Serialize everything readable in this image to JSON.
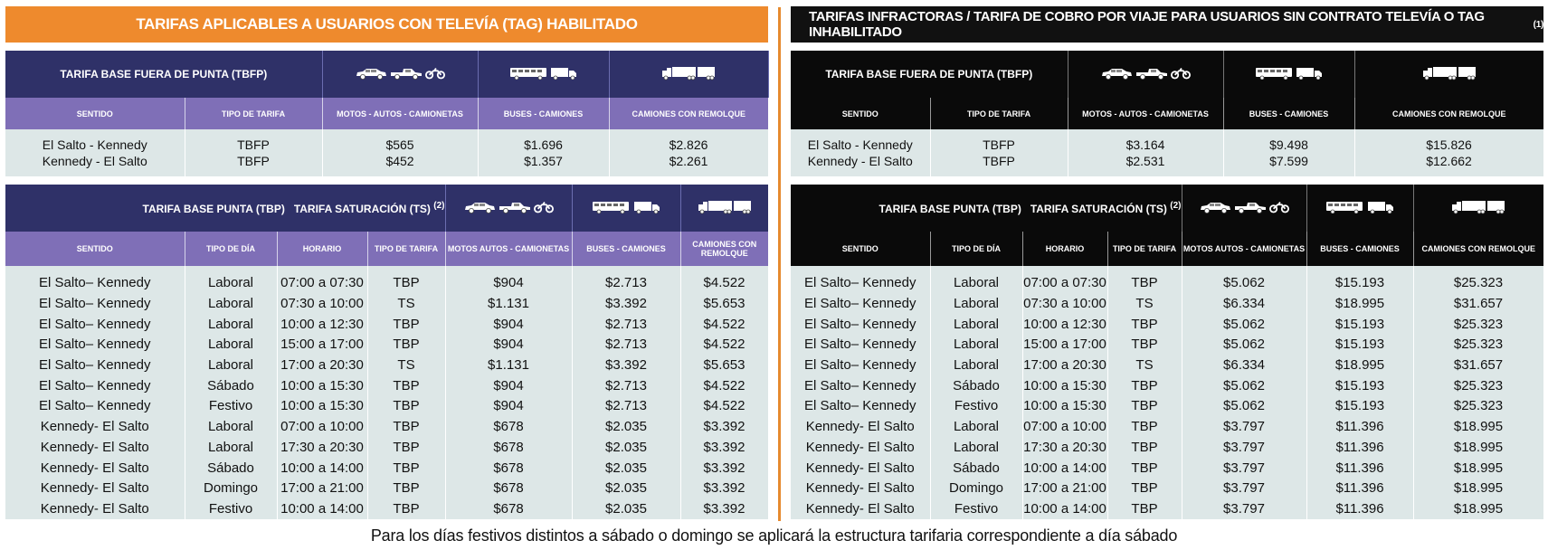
{
  "left": {
    "banner": "TARIFAS APLICABLES A USUARIOS CON TELEVÍA (TAG) HABILITADO",
    "tbfp": {
      "title": "TARIFA BASE FUERA DE PUNTA (TBFP)",
      "headers": [
        "SENTIDO",
        "TIPO DE TARIFA",
        "MOTOS - AUTOS - CAMIONETAS",
        "BUSES - CAMIONES",
        "CAMIONES CON REMOLQUE"
      ],
      "rows": [
        {
          "sentido": "El Salto - Kennedy",
          "tipo": "TBFP",
          "motos": "$565",
          "buses": "$1.696",
          "remolque": "$2.826"
        },
        {
          "sentido": "Kennedy - El Salto",
          "tipo": "TBFP",
          "motos": "$452",
          "buses": "$1.357",
          "remolque": "$2.261"
        }
      ]
    },
    "tbp": {
      "title": "TARIFA BASE PUNTA (TBP)   TARIFA SATURACIÓN (TS)",
      "note": "(2)",
      "headers": [
        "SENTIDO",
        "TIPO DE DÍA",
        "HORARIO",
        "TIPO DE TARIFA",
        "MOTOS AUTOS - CAMIONETAS",
        "BUSES - CAMIONES",
        "CAMIONES CON REMOLQUE"
      ],
      "rows": [
        [
          "El Salto– Kennedy",
          "Laboral",
          "07:00 a 07:30",
          "TBP",
          "$904",
          "$2.713",
          "$4.522"
        ],
        [
          "El Salto– Kennedy",
          "Laboral",
          "07:30 a 10:00",
          "TS",
          "$1.131",
          "$3.392",
          "$5.653"
        ],
        [
          "El Salto– Kennedy",
          "Laboral",
          "10:00 a 12:30",
          "TBP",
          "$904",
          "$2.713",
          "$4.522"
        ],
        [
          "El Salto– Kennedy",
          "Laboral",
          "15:00 a 17:00",
          "TBP",
          "$904",
          "$2.713",
          "$4.522"
        ],
        [
          "El Salto– Kennedy",
          "Laboral",
          "17:00 a 20:30",
          "TS",
          "$1.131",
          "$3.392",
          "$5.653"
        ],
        [
          "El Salto– Kennedy",
          "Sábado",
          "10:00 a 15:30",
          "TBP",
          "$904",
          "$2.713",
          "$4.522"
        ],
        [
          "El Salto– Kennedy",
          "Festivo",
          "10:00 a 15:30",
          "TBP",
          "$904",
          "$2.713",
          "$4.522"
        ],
        [
          "Kennedy- El Salto",
          "Laboral",
          "07:00 a 10:00",
          "TBP",
          "$678",
          "$2.035",
          "$3.392"
        ],
        [
          "Kennedy- El Salto",
          "Laboral",
          "17:30 a 20:30",
          "TBP",
          "$678",
          "$2.035",
          "$3.392"
        ],
        [
          "Kennedy- El Salto",
          "Sábado",
          "10:00 a 14:00",
          "TBP",
          "$678",
          "$2.035",
          "$3.392"
        ],
        [
          "Kennedy- El Salto",
          "Domingo",
          "17:00 a 21:00",
          "TBP",
          "$678",
          "$2.035",
          "$3.392"
        ],
        [
          "Kennedy- El Salto",
          "Festivo",
          "10:00 a 14:00",
          "TBP",
          "$678",
          "$2.035",
          "$3.392"
        ]
      ]
    }
  },
  "right": {
    "banner": "TARIFAS INFRACTORAS / TARIFA DE COBRO POR VIAJE PARA USUARIOS SIN CONTRATO TELEVÍA O TAG INHABILITADO",
    "banner_note": "(1)",
    "tbfp": {
      "title": "TARIFA BASE FUERA DE PUNTA (TBFP)",
      "headers": [
        "SENTIDO",
        "TIPO DE TARIFA",
        "MOTOS - AUTOS - CAMIONETAS",
        "BUSES - CAMIONES",
        "CAMIONES CON REMOLQUE"
      ],
      "rows": [
        {
          "sentido": "El Salto - Kennedy",
          "tipo": "TBFP",
          "motos": "$3.164",
          "buses": "$9.498",
          "remolque": "$15.826"
        },
        {
          "sentido": "Kennedy - El Salto",
          "tipo": "TBFP",
          "motos": "$2.531",
          "buses": "$7.599",
          "remolque": "$12.662"
        }
      ]
    },
    "tbp": {
      "title": "TARIFA BASE PUNTA (TBP)   TARIFA SATURACIÓN (TS)",
      "note": "(2)",
      "headers": [
        "SENTIDO",
        "TIPO DE DÍA",
        "HORARIO",
        "TIPO DE TARIFA",
        "MOTOS AUTOS - CAMIONETAS",
        "BUSES - CAMIONES",
        "CAMIONES CON REMOLQUE"
      ],
      "rows": [
        [
          "El Salto– Kennedy",
          "Laboral",
          "07:00 a 07:30",
          "TBP",
          "$5.062",
          "$15.193",
          "$25.323"
        ],
        [
          "El Salto– Kennedy",
          "Laboral",
          "07:30 a 10:00",
          "TS",
          "$6.334",
          "$18.995",
          "$31.657"
        ],
        [
          "El Salto– Kennedy",
          "Laboral",
          "10:00 a 12:30",
          "TBP",
          "$5.062",
          "$15.193",
          "$25.323"
        ],
        [
          "El Salto– Kennedy",
          "Laboral",
          "15:00 a 17:00",
          "TBP",
          "$5.062",
          "$15.193",
          "$25.323"
        ],
        [
          "El Salto– Kennedy",
          "Laboral",
          "17:00 a 20:30",
          "TS",
          "$6.334",
          "$18.995",
          "$31.657"
        ],
        [
          "El Salto– Kennedy",
          "Sábado",
          "10:00 a 15:30",
          "TBP",
          "$5.062",
          "$15.193",
          "$25.323"
        ],
        [
          "El Salto– Kennedy",
          "Festivo",
          "10:00 a 15:30",
          "TBP",
          "$5.062",
          "$15.193",
          "$25.323"
        ],
        [
          "Kennedy- El Salto",
          "Laboral",
          "07:00 a 10:00",
          "TBP",
          "$3.797",
          "$11.396",
          "$18.995"
        ],
        [
          "Kennedy- El Salto",
          "Laboral",
          "17:30 a 20:30",
          "TBP",
          "$3.797",
          "$11.396",
          "$18.995"
        ],
        [
          "Kennedy- El Salto",
          "Sábado",
          "10:00 a 14:00",
          "TBP",
          "$3.797",
          "$11.396",
          "$18.995"
        ],
        [
          "Kennedy- El Salto",
          "Domingo",
          "17:00 a 21:00",
          "TBP",
          "$3.797",
          "$11.396",
          "$18.995"
        ],
        [
          "Kennedy- El Salto",
          "Festivo",
          "10:00 a 14:00",
          "TBP",
          "$3.797",
          "$11.396",
          "$18.995"
        ]
      ]
    }
  },
  "icons": [
    "car-icon",
    "pickup-icon",
    "motorcycle-icon",
    "bus-icon",
    "truck-icon",
    "truck-trailer-icon"
  ],
  "colors": {
    "orange": "#ee8a2d",
    "navy": "#2f3168",
    "purple": "#7f6fb7",
    "black": "#0a0a0a",
    "row_bg": "#dde7e7"
  },
  "footnote": "Para los días festivos distintos a sábado o domingo se aplicará la estructura tarifaria correspondiente a día sábado"
}
